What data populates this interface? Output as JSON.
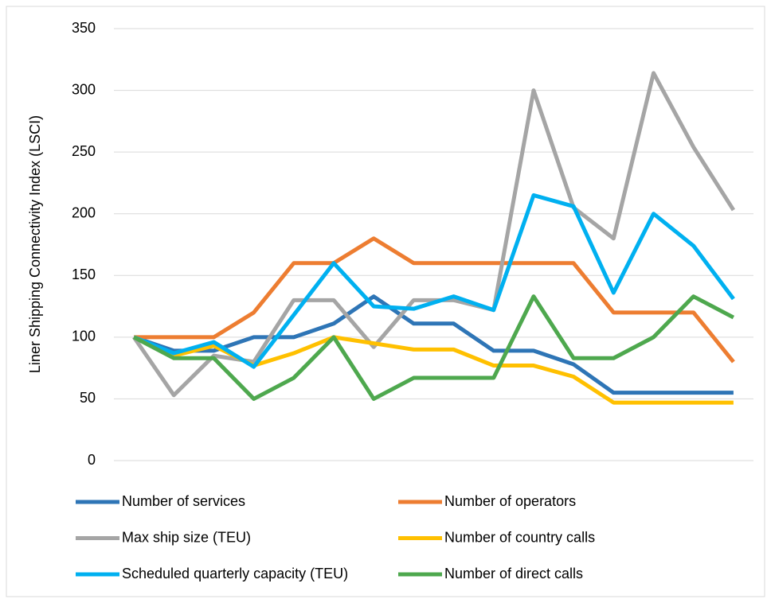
{
  "chart_data": {
    "type": "line",
    "y_label": "Liner Shipping Connectivity Index (LSCI)",
    "categories": [
      null,
      null,
      null,
      null,
      null,
      null,
      null,
      null,
      null,
      null,
      null,
      null,
      null,
      null,
      null,
      null
    ],
    "ylim": [
      0,
      350
    ],
    "yticks": [
      0,
      50,
      100,
      150,
      200,
      250,
      300,
      350
    ],
    "grid": true,
    "series": [
      {
        "name": "Number of services",
        "color": "#2e75b6",
        "values": [
          100,
          89,
          89,
          100,
          100,
          111,
          133,
          111,
          111,
          89,
          89,
          78,
          55,
          55,
          55,
          55
        ]
      },
      {
        "name": "Number of operators",
        "color": "#ed7d31",
        "values": [
          100,
          100,
          100,
          120,
          160,
          160,
          180,
          160,
          160,
          160,
          160,
          160,
          120,
          120,
          120,
          80
        ]
      },
      {
        "name": "Max ship size (TEU)",
        "color": "#a5a5a5",
        "values": [
          100,
          53,
          85,
          80,
          130,
          130,
          92,
          130,
          130,
          122,
          300,
          205,
          180,
          314,
          254,
          203
        ]
      },
      {
        "name": "Number of country calls",
        "color": "#ffc000",
        "values": [
          100,
          85,
          93,
          77,
          87,
          100,
          95,
          90,
          90,
          77,
          77,
          68,
          47,
          47,
          47,
          47
        ]
      },
      {
        "name": "Scheduled quarterly capacity (TEU)",
        "color": "#00b0f0",
        "values": [
          100,
          87,
          96,
          76,
          118,
          160,
          125,
          123,
          133,
          122,
          215,
          206,
          136,
          200,
          174,
          131
        ]
      },
      {
        "name": "Number of direct calls",
        "color": "#4ea84e",
        "values": [
          100,
          83,
          83,
          50,
          67,
          100,
          50,
          67,
          67,
          67,
          133,
          83,
          83,
          100,
          133,
          116
        ]
      }
    ]
  }
}
